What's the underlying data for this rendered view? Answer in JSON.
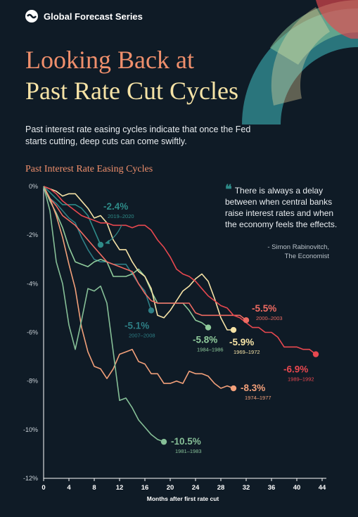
{
  "brand": {
    "name": "Global Forecast Series",
    "logo_icon": "visual-capitalist-logo-icon"
  },
  "header": {
    "title_line1": "Looking Back at",
    "title_line2": "Past Rate Cut Cycles",
    "subtitle": "Past interest rate easing cycles indicate that once the Fed starts cutting, deep cuts can come swiftly."
  },
  "quote": {
    "text": "There is always a delay between when central banks raise interest rates and when the economy feels the effects.",
    "author_line1": "- Simon Rabinovitch,",
    "author_line2": "The Economist"
  },
  "colors": {
    "background": "#0f1b26",
    "orange": "#ef8f6c",
    "cream": "#f6e3a6",
    "teal": "#2e8b88"
  },
  "chart_data": {
    "type": "line",
    "title": "Past Interest Rate Easing Cycles",
    "xlabel": "Months after first rate cut",
    "ylabel": "",
    "xlim": [
      0,
      44
    ],
    "ylim": [
      -12,
      0
    ],
    "x_ticks": [
      "0",
      "4",
      "8",
      "12",
      "16",
      "20",
      "24",
      "28",
      "32",
      "36",
      "40",
      "44"
    ],
    "y_ticks": [
      "0%",
      "-2%",
      "-4%",
      "-6%",
      "-8%",
      "-10%",
      "-12%"
    ],
    "grid": false,
    "series": [
      {
        "name": "2019–2020",
        "value_label": "-2.4%",
        "color": "#2e8b88",
        "x": [
          0,
          1,
          2,
          3,
          4,
          5,
          6,
          7,
          8,
          9
        ],
        "y": [
          0,
          -0.25,
          -0.5,
          -0.75,
          -0.75,
          -0.75,
          -0.9,
          -1.2,
          -1.8,
          -2.4
        ]
      },
      {
        "name": "2007–2008",
        "value_label": "-5.1%",
        "color": "#2e7f86",
        "x": [
          0,
          1,
          2,
          3,
          4,
          5,
          6,
          7,
          8,
          9,
          10,
          11,
          12,
          13,
          14,
          15,
          16,
          17
        ],
        "y": [
          0,
          -0.5,
          -0.7,
          -1.0,
          -1.3,
          -1.5,
          -2.1,
          -2.6,
          -3.0,
          -3.1,
          -3.1,
          -3.2,
          -3.2,
          -3.2,
          -3.6,
          -4.0,
          -4.3,
          -5.1
        ]
      },
      {
        "name": "1984–1986",
        "value_label": "-5.8%",
        "color": "#8fcb9b",
        "x": [
          0,
          1,
          2,
          3,
          4,
          5,
          6,
          7,
          8,
          9,
          10,
          11,
          12,
          13,
          14,
          15,
          16,
          17,
          18,
          19,
          20,
          21,
          22,
          23,
          24,
          25,
          26
        ],
        "y": [
          0,
          -0.6,
          -1.1,
          -1.7,
          -2.5,
          -3.1,
          -3.2,
          -3.3,
          -3.1,
          -3.0,
          -3.1,
          -3.7,
          -3.7,
          -3.7,
          -3.6,
          -3.4,
          -3.7,
          -4.3,
          -4.8,
          -4.8,
          -4.8,
          -4.8,
          -4.8,
          -5.1,
          -5.5,
          -5.6,
          -5.8
        ]
      },
      {
        "name": "1969–1972",
        "value_label": "-5.9%",
        "color": "#f6e3a6",
        "x": [
          0,
          1,
          2,
          3,
          4,
          5,
          6,
          7,
          8,
          9,
          10,
          11,
          12,
          13,
          14,
          15,
          16,
          17,
          18,
          19,
          20,
          21,
          22,
          23,
          24,
          25,
          26,
          27,
          28,
          29,
          30
        ],
        "y": [
          0,
          -0.1,
          -0.2,
          -0.4,
          -0.3,
          -0.3,
          -0.6,
          -0.9,
          -1.3,
          -1.2,
          -1.5,
          -2.2,
          -2.6,
          -2.6,
          -3.1,
          -3.5,
          -3.7,
          -4.2,
          -5.3,
          -5.4,
          -5.1,
          -4.7,
          -4.3,
          -4.1,
          -3.8,
          -3.6,
          -3.9,
          -4.6,
          -5.4,
          -5.9,
          -5.9
        ]
      },
      {
        "name": "2000–2003",
        "value_label": "-5.5%",
        "color": "#ef6b62",
        "x": [
          0,
          1,
          2,
          3,
          4,
          5,
          6,
          7,
          8,
          9,
          10,
          11,
          12,
          13,
          14,
          15,
          16,
          17,
          18,
          19,
          20,
          21,
          22,
          23,
          24,
          25,
          26,
          27,
          28,
          29,
          30,
          31,
          32
        ],
        "y": [
          0,
          -0.5,
          -0.8,
          -1.2,
          -1.4,
          -1.6,
          -1.9,
          -2.2,
          -2.5,
          -2.8,
          -3.1,
          -3.2,
          -3.3,
          -3.4,
          -3.5,
          -4.0,
          -4.4,
          -4.7,
          -4.8,
          -4.8,
          -4.8,
          -4.8,
          -4.8,
          -4.8,
          -5.2,
          -5.3,
          -5.3,
          -5.3,
          -5.3,
          -5.3,
          -5.3,
          -5.3,
          -5.5
        ]
      },
      {
        "name": "1989–1992",
        "value_label": "-6.9%",
        "color": "#e8484f",
        "x": [
          0,
          1,
          2,
          3,
          4,
          5,
          6,
          7,
          8,
          9,
          10,
          11,
          12,
          13,
          14,
          15,
          16,
          17,
          18,
          19,
          20,
          21,
          22,
          23,
          24,
          25,
          26,
          27,
          28,
          29,
          30,
          31,
          32,
          33,
          34,
          35,
          36,
          37,
          38,
          39,
          40,
          41,
          42,
          43
        ],
        "y": [
          0,
          -0.1,
          -0.3,
          -0.6,
          -0.8,
          -1.0,
          -1.2,
          -1.3,
          -1.4,
          -1.5,
          -1.5,
          -1.6,
          -1.6,
          -1.6,
          -1.7,
          -1.6,
          -1.6,
          -1.8,
          -2.2,
          -2.5,
          -2.9,
          -3.4,
          -3.6,
          -3.7,
          -3.9,
          -4.2,
          -4.5,
          -4.7,
          -4.9,
          -5.0,
          -5.3,
          -5.4,
          -5.6,
          -5.8,
          -5.8,
          -6.0,
          -6.0,
          -6.2,
          -6.6,
          -6.6,
          -6.6,
          -6.7,
          -6.7,
          -6.9
        ]
      },
      {
        "name": "1974–1977",
        "value_label": "-8.3%",
        "color": "#f2a07a",
        "x": [
          0,
          1,
          2,
          3,
          4,
          5,
          6,
          7,
          8,
          9,
          10,
          11,
          12,
          13,
          14,
          15,
          16,
          17,
          18,
          19,
          20,
          21,
          22,
          23,
          24,
          25,
          26,
          27,
          28,
          29,
          30
        ],
        "y": [
          0,
          -0.5,
          -1.2,
          -2.1,
          -3.2,
          -4.2,
          -5.8,
          -6.8,
          -7.4,
          -7.5,
          -7.9,
          -7.5,
          -6.9,
          -6.8,
          -6.7,
          -7.2,
          -7.3,
          -7.7,
          -7.7,
          -8.1,
          -8.1,
          -8.0,
          -8.1,
          -7.6,
          -7.7,
          -7.7,
          -7.8,
          -8.1,
          -8.3,
          -8.2,
          -8.3
        ]
      },
      {
        "name": "1981–1983",
        "value_label": "-10.5%",
        "color": "#86bf97",
        "x": [
          0,
          1,
          2,
          3,
          4,
          5,
          6,
          7,
          8,
          9,
          10,
          11,
          12,
          13,
          14,
          15,
          16,
          17,
          18,
          19
        ],
        "y": [
          0,
          -1.0,
          -3.1,
          -4.0,
          -5.7,
          -6.7,
          -5.5,
          -4.2,
          -4.3,
          -4.1,
          -4.8,
          -6.8,
          -8.8,
          -8.7,
          -9.1,
          -9.6,
          -9.9,
          -10.2,
          -10.4,
          -10.5
        ]
      }
    ]
  }
}
